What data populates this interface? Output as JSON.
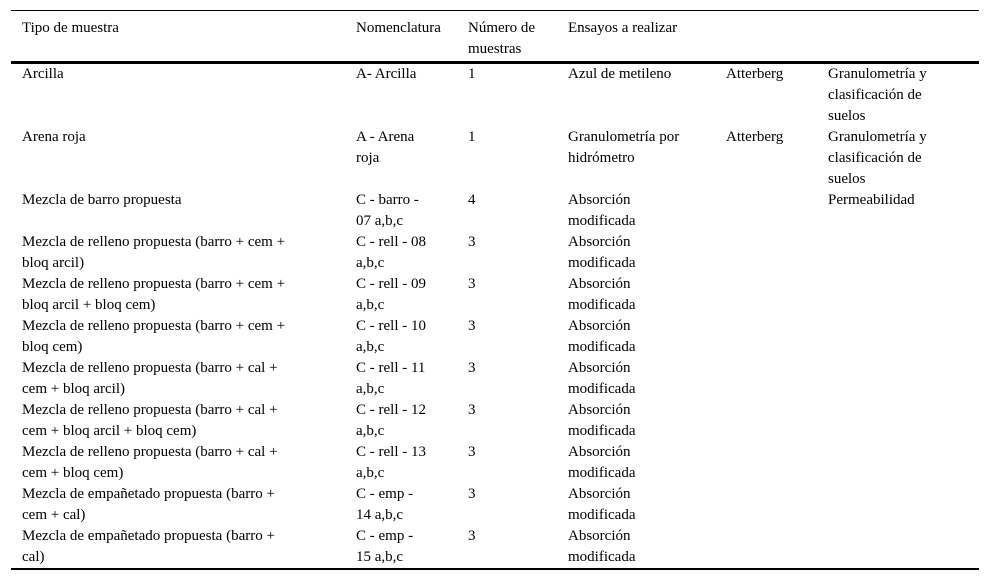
{
  "header": {
    "col_tipo": "Tipo de muestra",
    "col_nomenclatura": "Nomenclatura",
    "col_numero": "Número de\nmuestras",
    "col_ensayos": "Ensayos a realizar"
  },
  "rows": [
    {
      "tipo": "Arcilla",
      "nomenclatura": "A- Arcilla",
      "numero": "1",
      "ensayo_a": "Azul de metileno",
      "ensayo_b": "Atterberg",
      "ensayo_c": "Granulometría y\nclasificación de\nsuelos"
    },
    {
      "tipo": "Arena roja",
      "nomenclatura": "A - Arena\nroja",
      "numero": "1",
      "ensayo_a": "Granulometría por\nhidrómetro",
      "ensayo_b": "Atterberg",
      "ensayo_c": "Granulometría y\nclasificación de\nsuelos"
    },
    {
      "tipo": "Mezcla de barro propuesta",
      "nomenclatura": "C - barro -\n07 a,b,c",
      "numero": "4",
      "ensayo_a": "Absorción\nmodificada",
      "ensayo_b": "",
      "ensayo_c": "Permeabilidad"
    },
    {
      "tipo": "Mezcla de relleno propuesta (barro + cem +\nbloq arcil)",
      "nomenclatura": "C - rell - 08\na,b,c",
      "numero": "3",
      "ensayo_a": "Absorción\nmodificada",
      "ensayo_b": "",
      "ensayo_c": ""
    },
    {
      "tipo": "Mezcla de relleno propuesta (barro + cem +\nbloq arcil + bloq cem)",
      "nomenclatura": "C - rell - 09\na,b,c",
      "numero": "3",
      "ensayo_a": "Absorción\nmodificada",
      "ensayo_b": "",
      "ensayo_c": ""
    },
    {
      "tipo": "Mezcla de relleno propuesta (barro + cem +\nbloq cem)",
      "nomenclatura": "C - rell - 10\na,b,c",
      "numero": "3",
      "ensayo_a": "Absorción\nmodificada",
      "ensayo_b": "",
      "ensayo_c": ""
    },
    {
      "tipo": "Mezcla de relleno propuesta (barro + cal +\ncem + bloq arcil)",
      "nomenclatura": "C - rell - 11\na,b,c",
      "numero": "3",
      "ensayo_a": "Absorción\nmodificada",
      "ensayo_b": "",
      "ensayo_c": ""
    },
    {
      "tipo": "Mezcla de relleno propuesta (barro + cal +\ncem + bloq arcil + bloq cem)",
      "nomenclatura": "C - rell - 12\na,b,c",
      "numero": "3",
      "ensayo_a": "Absorción\nmodificada",
      "ensayo_b": "",
      "ensayo_c": ""
    },
    {
      "tipo": "Mezcla de relleno propuesta (barro + cal +\ncem + bloq cem)",
      "nomenclatura": "C - rell - 13\na,b,c",
      "numero": "3",
      "ensayo_a": "Absorción\nmodificada",
      "ensayo_b": "",
      "ensayo_c": ""
    },
    {
      "tipo": "Mezcla de empañetado propuesta (barro +\ncem + cal)",
      "nomenclatura": "C - emp -\n14 a,b,c",
      "numero": "3",
      "ensayo_a": "Absorción\nmodificada",
      "ensayo_b": "",
      "ensayo_c": ""
    },
    {
      "tipo": "Mezcla de empañetado propuesta (barro +\ncal)",
      "nomenclatura": "C - emp -\n15 a,b,c",
      "numero": "3",
      "ensayo_a": "Absorción\nmodificada",
      "ensayo_b": "",
      "ensayo_c": ""
    }
  ]
}
